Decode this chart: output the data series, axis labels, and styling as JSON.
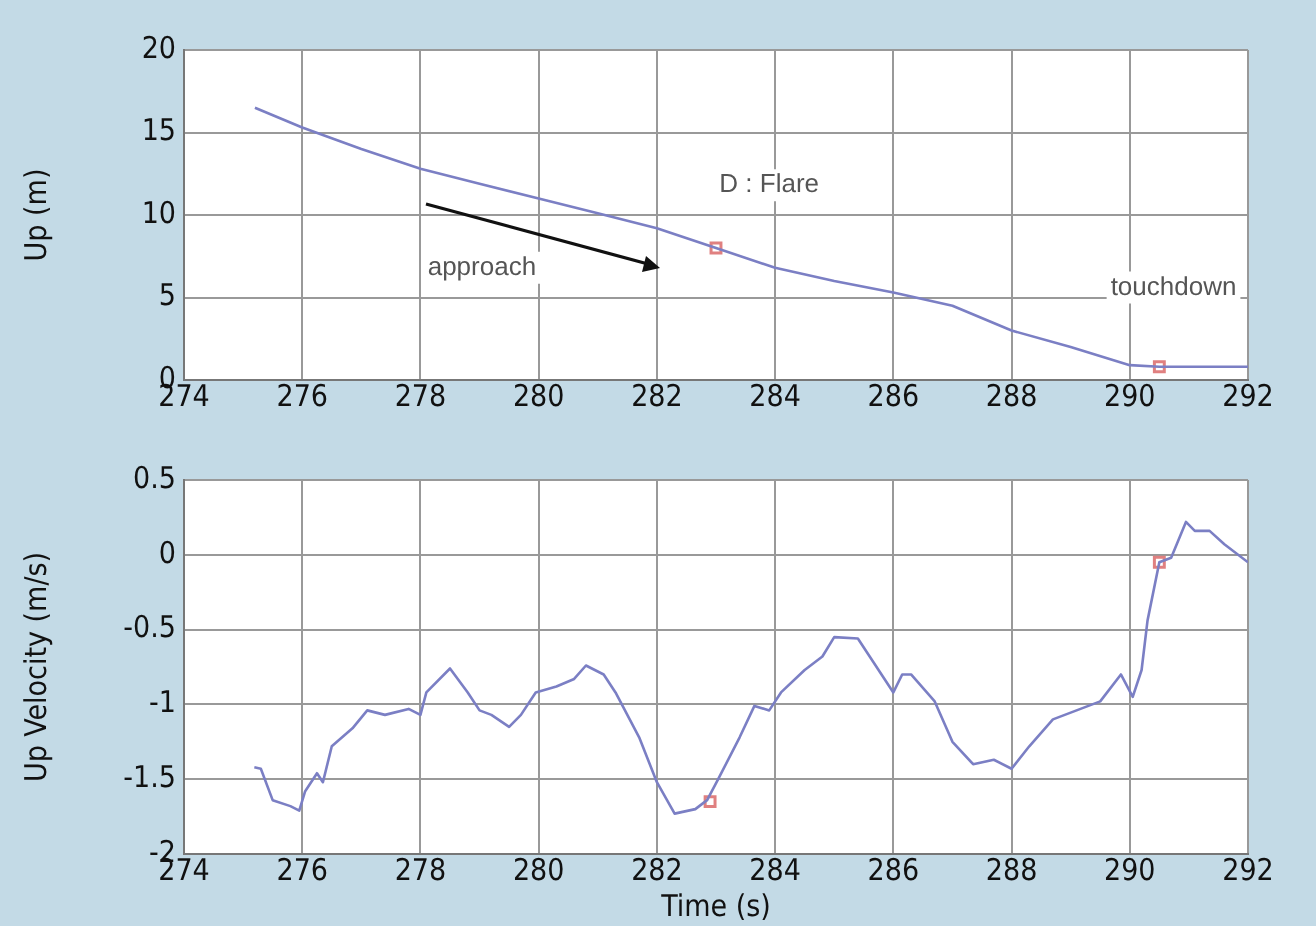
{
  "chart_data": [
    {
      "type": "line",
      "ylabel": "Up (m)",
      "xlim": [
        274,
        292
      ],
      "xticks": [
        274,
        276,
        278,
        280,
        282,
        284,
        286,
        288,
        290,
        292
      ],
      "ylim": [
        0,
        20
      ],
      "yticks": [
        0,
        5,
        10,
        15,
        20
      ],
      "grid": true,
      "legend": false,
      "marker": "none",
      "line_style": "solid",
      "annotations": [
        "approach",
        "D : Flare",
        "touchdown"
      ],
      "series": [
        {
          "color": "#7b7fc4",
          "x": [
            275.2,
            276,
            277,
            278,
            279,
            280,
            281,
            282,
            283,
            284,
            285,
            286,
            287,
            288,
            289,
            290,
            290.5,
            291,
            292
          ],
          "values": [
            16.5,
            15.3,
            14,
            12.8,
            11.9,
            11,
            10.1,
            9.2,
            8,
            6.8,
            6,
            5.3,
            4.5,
            3,
            2,
            0.9,
            0.8,
            0.8,
            0.8
          ]
        },
        {
          "type": "scatter",
          "color": "#e08080",
          "marker": "square",
          "x": [
            283,
            290.5
          ],
          "values": [
            8,
            0.8
          ]
        }
      ]
    },
    {
      "type": "line",
      "xlabel": "Time (s)",
      "ylabel": "Up Velocity (m/s)",
      "xlim": [
        274,
        292
      ],
      "xticks": [
        274,
        276,
        278,
        280,
        282,
        284,
        286,
        288,
        290,
        292
      ],
      "ylim": [
        -2,
        0.5
      ],
      "yticks": [
        -2,
        -1.5,
        -1,
        -0.5,
        0,
        0.5
      ],
      "grid": true,
      "legend": false,
      "marker": "none",
      "line_style": "solid",
      "series": [
        {
          "color": "#7b7fc4",
          "x": [
            275.19,
            275.3,
            275.5,
            275.8,
            275.95,
            276.05,
            276.25,
            276.35,
            276.5,
            276.85,
            277.1,
            277.4,
            277.8,
            278,
            278.1,
            278.5,
            278.8,
            279,
            279.2,
            279.5,
            279.7,
            279.95,
            280.3,
            280.6,
            280.8,
            281.1,
            281.3,
            281.7,
            282,
            282.3,
            282.65,
            282.85,
            283.05,
            283.4,
            283.65,
            283.9,
            284.1,
            284.5,
            284.8,
            285,
            285.4,
            285.75,
            286,
            286.15,
            286.3,
            286.7,
            287,
            287.35,
            287.7,
            288,
            288.3,
            288.7,
            289.1,
            289.5,
            289.85,
            290.05,
            290.2,
            290.3,
            290.5,
            290.7,
            290.95,
            291.1,
            291.35,
            291.6,
            292
          ],
          "values": [
            -1.42,
            -1.43,
            -1.64,
            -1.68,
            -1.71,
            -1.58,
            -1.46,
            -1.52,
            -1.28,
            -1.16,
            -1.04,
            -1.07,
            -1.03,
            -1.07,
            -0.92,
            -0.76,
            -0.92,
            -1.04,
            -1.07,
            -1.15,
            -1.07,
            -0.92,
            -0.88,
            -0.83,
            -0.74,
            -0.8,
            -0.92,
            -1.22,
            -1.52,
            -1.73,
            -1.7,
            -1.64,
            -1.49,
            -1.22,
            -1.01,
            -1.04,
            -0.92,
            -0.77,
            -0.68,
            -0.55,
            -0.56,
            -0.77,
            -0.92,
            -0.8,
            -0.8,
            -0.98,
            -1.25,
            -1.4,
            -1.37,
            -1.43,
            -1.28,
            -1.1,
            -1.04,
            -0.98,
            -0.8,
            -0.95,
            -0.77,
            -0.44,
            -0.05,
            -0.02,
            0.22,
            0.16,
            0.16,
            0.07,
            -0.05
          ]
        },
        {
          "type": "scatter",
          "color": "#e08080",
          "marker": "square",
          "x": [
            282.9,
            290.5
          ],
          "values": [
            -1.65,
            -0.05
          ]
        }
      ]
    }
  ]
}
